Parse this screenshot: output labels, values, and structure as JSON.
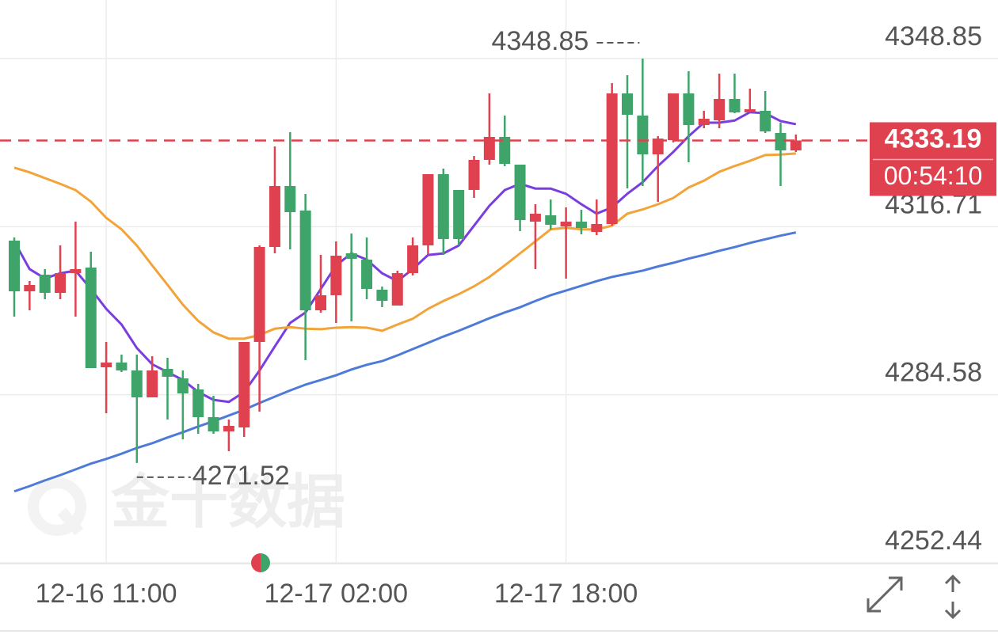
{
  "chart_data": {
    "type": "candlestick",
    "watermark": "金十数据",
    "countdown": "00:54:10",
    "up_color": "#e0414f",
    "down_color": "#3fa46a",
    "ylim": [
      4252.44,
      4360.05
    ],
    "yticks": [
      4348.85,
      4316.71,
      4284.58,
      4252.44
    ],
    "grid": true,
    "categories": [
      null,
      null,
      null,
      null,
      null,
      null,
      "12-16 11:00",
      null,
      null,
      null,
      null,
      null,
      null,
      null,
      null,
      null,
      null,
      null,
      null,
      null,
      null,
      "12-17 02:00",
      null,
      null,
      null,
      null,
      null,
      null,
      null,
      null,
      null,
      null,
      null,
      null,
      null,
      null,
      "12-17 18:00",
      null,
      null,
      null,
      null,
      null,
      null,
      null,
      null,
      null,
      null,
      null,
      null,
      null,
      null,
      null
    ],
    "open": [
      4314.04,
      4304.35,
      4307.53,
      4304.05,
      4307.83,
      4308.89,
      4289.82,
      4290.73,
      4289.22,
      4284.07,
      4289.52,
      4287.7,
      4285.59,
      4280.29,
      4277.56,
      4278.32,
      4294.67,
      4312.83,
      4324.48,
      4319.79,
      4300.72,
      4303.6,
      4311.62,
      4310.41,
      4304.66,
      4301.63,
      4307.83,
      4313.13,
      4326.75,
      4323.73,
      4323.73,
      4329.48,
      4333.87,
      4328.57,
      4317.67,
      4318.88,
      4316.76,
      4317.67,
      4315.7,
      4317.22,
      4342.19,
      4337.95,
      4330.54,
      4333.26,
      4342.19,
      4336.14,
      4337.04,
      4341.13,
      4338.56,
      4338.86,
      4334.62,
      4331.29
    ],
    "high": [
      4314.64,
      4306.32,
      4308.59,
      4313.13,
      4317.67,
      4311.92,
      4294.67,
      4292.25,
      4292.25,
      4291.94,
      4291.64,
      4289.22,
      4286.65,
      4284.37,
      4279.83,
      4294.67,
      4313.13,
      4332.05,
      4334.77,
      4322.97,
      4311.32,
      4313.89,
      4315.4,
      4314.64,
      4305.26,
      4308.29,
      4314.64,
      4326.75,
      4327.81,
      4323.73,
      4330.23,
      4342.19,
      4337.95,
      4328.57,
      4321.0,
      4321.91,
      4320.4,
      4319.94,
      4321.91,
      4344.16,
      4345.67,
      4348.85,
      4334.02,
      4342.19,
      4346.43,
      4338.86,
      4345.97,
      4345.97,
      4343.1,
      4342.64,
      4336.59,
      4334.32
    ],
    "low": [
      4299.51,
      4300.72,
      4302.84,
      4302.84,
      4299.51,
      4289.67,
      4281.05,
      4288.92,
      4271.52,
      4284.07,
      4279.83,
      4276.05,
      4277.11,
      4277.11,
      4273.78,
      4276.5,
      4281.35,
      4311.62,
      4312.37,
      4291.19,
      4300.27,
      4298.3,
      4298.6,
      4302.84,
      4301.33,
      4301.63,
      4307.38,
      4311.32,
      4311.32,
      4313.13,
      4322.21,
      4328.57,
      4328.27,
      4315.86,
      4308.59,
      4316.16,
      4306.77,
      4315.25,
      4315.1,
      4316.92,
      4324.03,
      4324.48,
      4321.46,
      4332.81,
      4329.02,
      4335.53,
      4335.53,
      4338.41,
      4338.56,
      4334.62,
      4324.48,
      4330.99
    ],
    "close": [
      4304.35,
      4305.56,
      4304.05,
      4307.83,
      4308.59,
      4289.67,
      4290.73,
      4289.22,
      4284.07,
      4289.22,
      4288.01,
      4284.83,
      4280.29,
      4277.56,
      4278.62,
      4294.67,
      4312.83,
      4324.48,
      4319.49,
      4300.72,
      4303.6,
      4311.16,
      4310.56,
      4304.81,
      4302.54,
      4307.83,
      4313.13,
      4326.75,
      4314.34,
      4314.34,
      4329.48,
      4333.87,
      4328.72,
      4317.97,
      4319.19,
      4317.07,
      4317.67,
      4316.46,
      4317.22,
      4342.19,
      4338.1,
      4330.54,
      4333.56,
      4342.19,
      4336.14,
      4337.35,
      4341.13,
      4338.56,
      4339.16,
      4334.93,
      4331.29,
      4333.19
    ],
    "lines": [
      {
        "color": "#7a3ee0",
        "values": [
          4313.9,
          4308.6,
          4306.8,
          4307.8,
          4308.3,
          4304.8,
          4301.0,
          4298.0,
          4293.5,
          4290.4,
          4288.9,
          4287.4,
          4285.1,
          4283.6,
          4283.2,
          4285.1,
          4289.2,
          4293.8,
          4298.3,
          4300.3,
          4304.8,
          4309.3,
          4311.6,
          4310.4,
          4307.8,
          4306.3,
          4308.6,
          4311.3,
          4311.6,
          4313.1,
          4316.9,
          4320.7,
          4323.7,
          4324.9,
          4324.0,
          4324.0,
          4323.0,
          4321.0,
          4319.2,
          4320.4,
          4323.0,
          4325.2,
          4328.3,
          4331.0,
          4334.0,
          4336.6,
          4336.6,
          4337.0,
          4338.6,
          4338.4,
          4336.9,
          4336.3
        ]
      },
      {
        "color": "#f2a43a",
        "values": [
          4328.0,
          4327.1,
          4326.0,
          4324.9,
          4323.7,
          4321.5,
          4318.4,
          4316.2,
          4313.1,
          4309.3,
          4305.6,
          4301.8,
          4298.7,
          4296.5,
          4295.3,
          4295.3,
          4296.0,
          4297.2,
          4297.5,
          4297.2,
          4297.1,
          4297.4,
          4297.5,
          4297.4,
          4296.8,
          4298.0,
          4299.1,
          4301.0,
          4302.5,
          4303.8,
          4305.3,
          4307.1,
          4309.3,
          4311.6,
          4313.9,
          4316.2,
          4316.5,
          4316.2,
          4316.2,
          4316.9,
          4319.2,
          4320.0,
          4321.0,
          4322.2,
          4324.2,
          4325.5,
          4327.2,
          4328.3,
          4329.3,
          4330.4,
          4330.5,
          4330.7
        ]
      },
      {
        "color": "#4f7bd8",
        "values": [
          4266.1,
          4267.1,
          4268.2,
          4269.2,
          4270.3,
          4271.4,
          4272.3,
          4273.3,
          4274.4,
          4275.3,
          4276.4,
          4277.4,
          4278.5,
          4279.5,
          4280.6,
          4281.7,
          4283.0,
          4284.2,
          4285.4,
          4286.5,
          4287.4,
          4288.3,
          4289.4,
          4290.3,
          4291.0,
          4292.1,
          4293.3,
          4294.5,
          4295.7,
          4296.8,
          4298.0,
          4299.2,
          4300.3,
          4301.3,
          4302.5,
          4303.6,
          4304.5,
          4305.4,
          4306.3,
          4307.1,
          4307.7,
          4308.3,
          4309.1,
          4309.8,
          4310.6,
          4311.3,
          4312.1,
          4312.8,
          4313.6,
          4314.3,
          4315.0,
          4315.6
        ]
      }
    ]
  }
}
